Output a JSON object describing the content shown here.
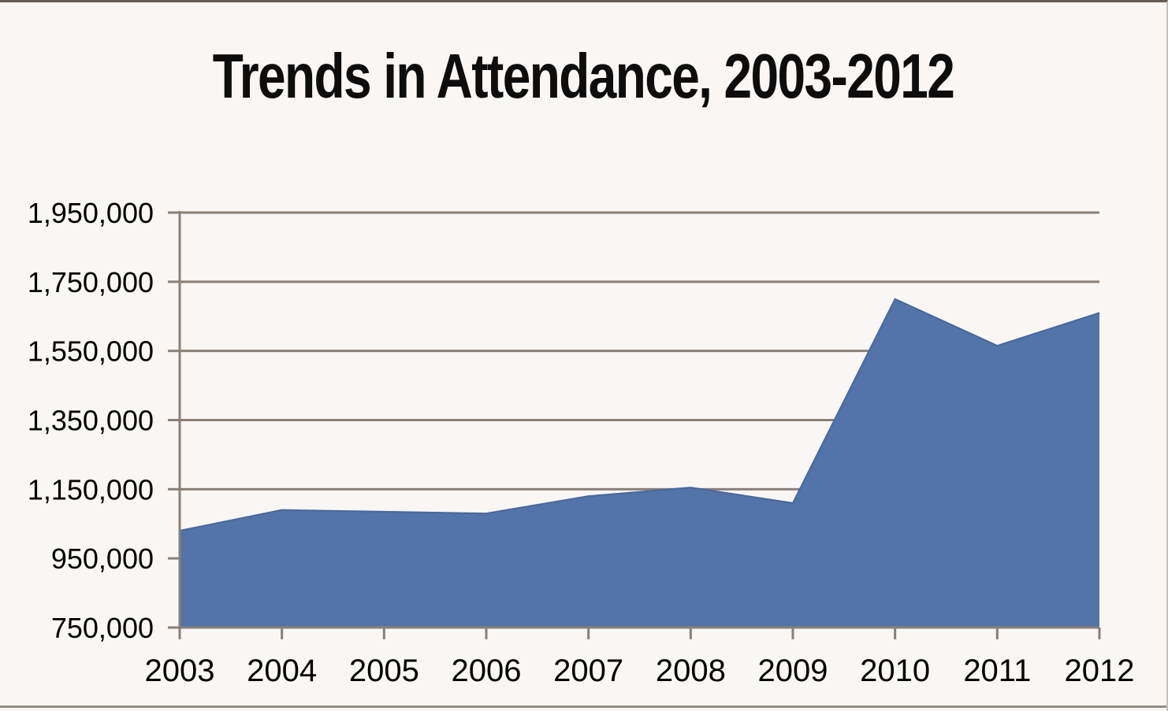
{
  "page": {
    "title": "Trends in Attendance, 2003-2012"
  },
  "chart_data": {
    "type": "area",
    "title": "Trends in Attendance, 2003-2012",
    "categories": [
      "2003",
      "2004",
      "2005",
      "2006",
      "2007",
      "2008",
      "2009",
      "2010",
      "2011",
      "2012"
    ],
    "values": [
      1030000,
      1090000,
      1085000,
      1080000,
      1130000,
      1155000,
      1110000,
      1700000,
      1565000,
      1660000
    ],
    "xlabel": "",
    "ylabel": "",
    "ylim": [
      750000,
      1950000
    ],
    "ytick_interval": 200000,
    "yticks": [
      {
        "value": 750000,
        "label": "750,000"
      },
      {
        "value": 950000,
        "label": "950,000"
      },
      {
        "value": 1150000,
        "label": "1,150,000"
      },
      {
        "value": 1350000,
        "label": "1,350,000"
      },
      {
        "value": 1550000,
        "label": "1,550,000"
      },
      {
        "value": 1750000,
        "label": "1,750,000"
      },
      {
        "value": 1950000,
        "label": "1,950,000"
      }
    ],
    "grid": true,
    "legend": false,
    "colors": {
      "area_fill": "#5274a8",
      "area_edge": "#49679b",
      "gridline": "#8a8078",
      "axis": "#8a8078",
      "text": "#000000",
      "background": "#f9f6f4"
    }
  }
}
